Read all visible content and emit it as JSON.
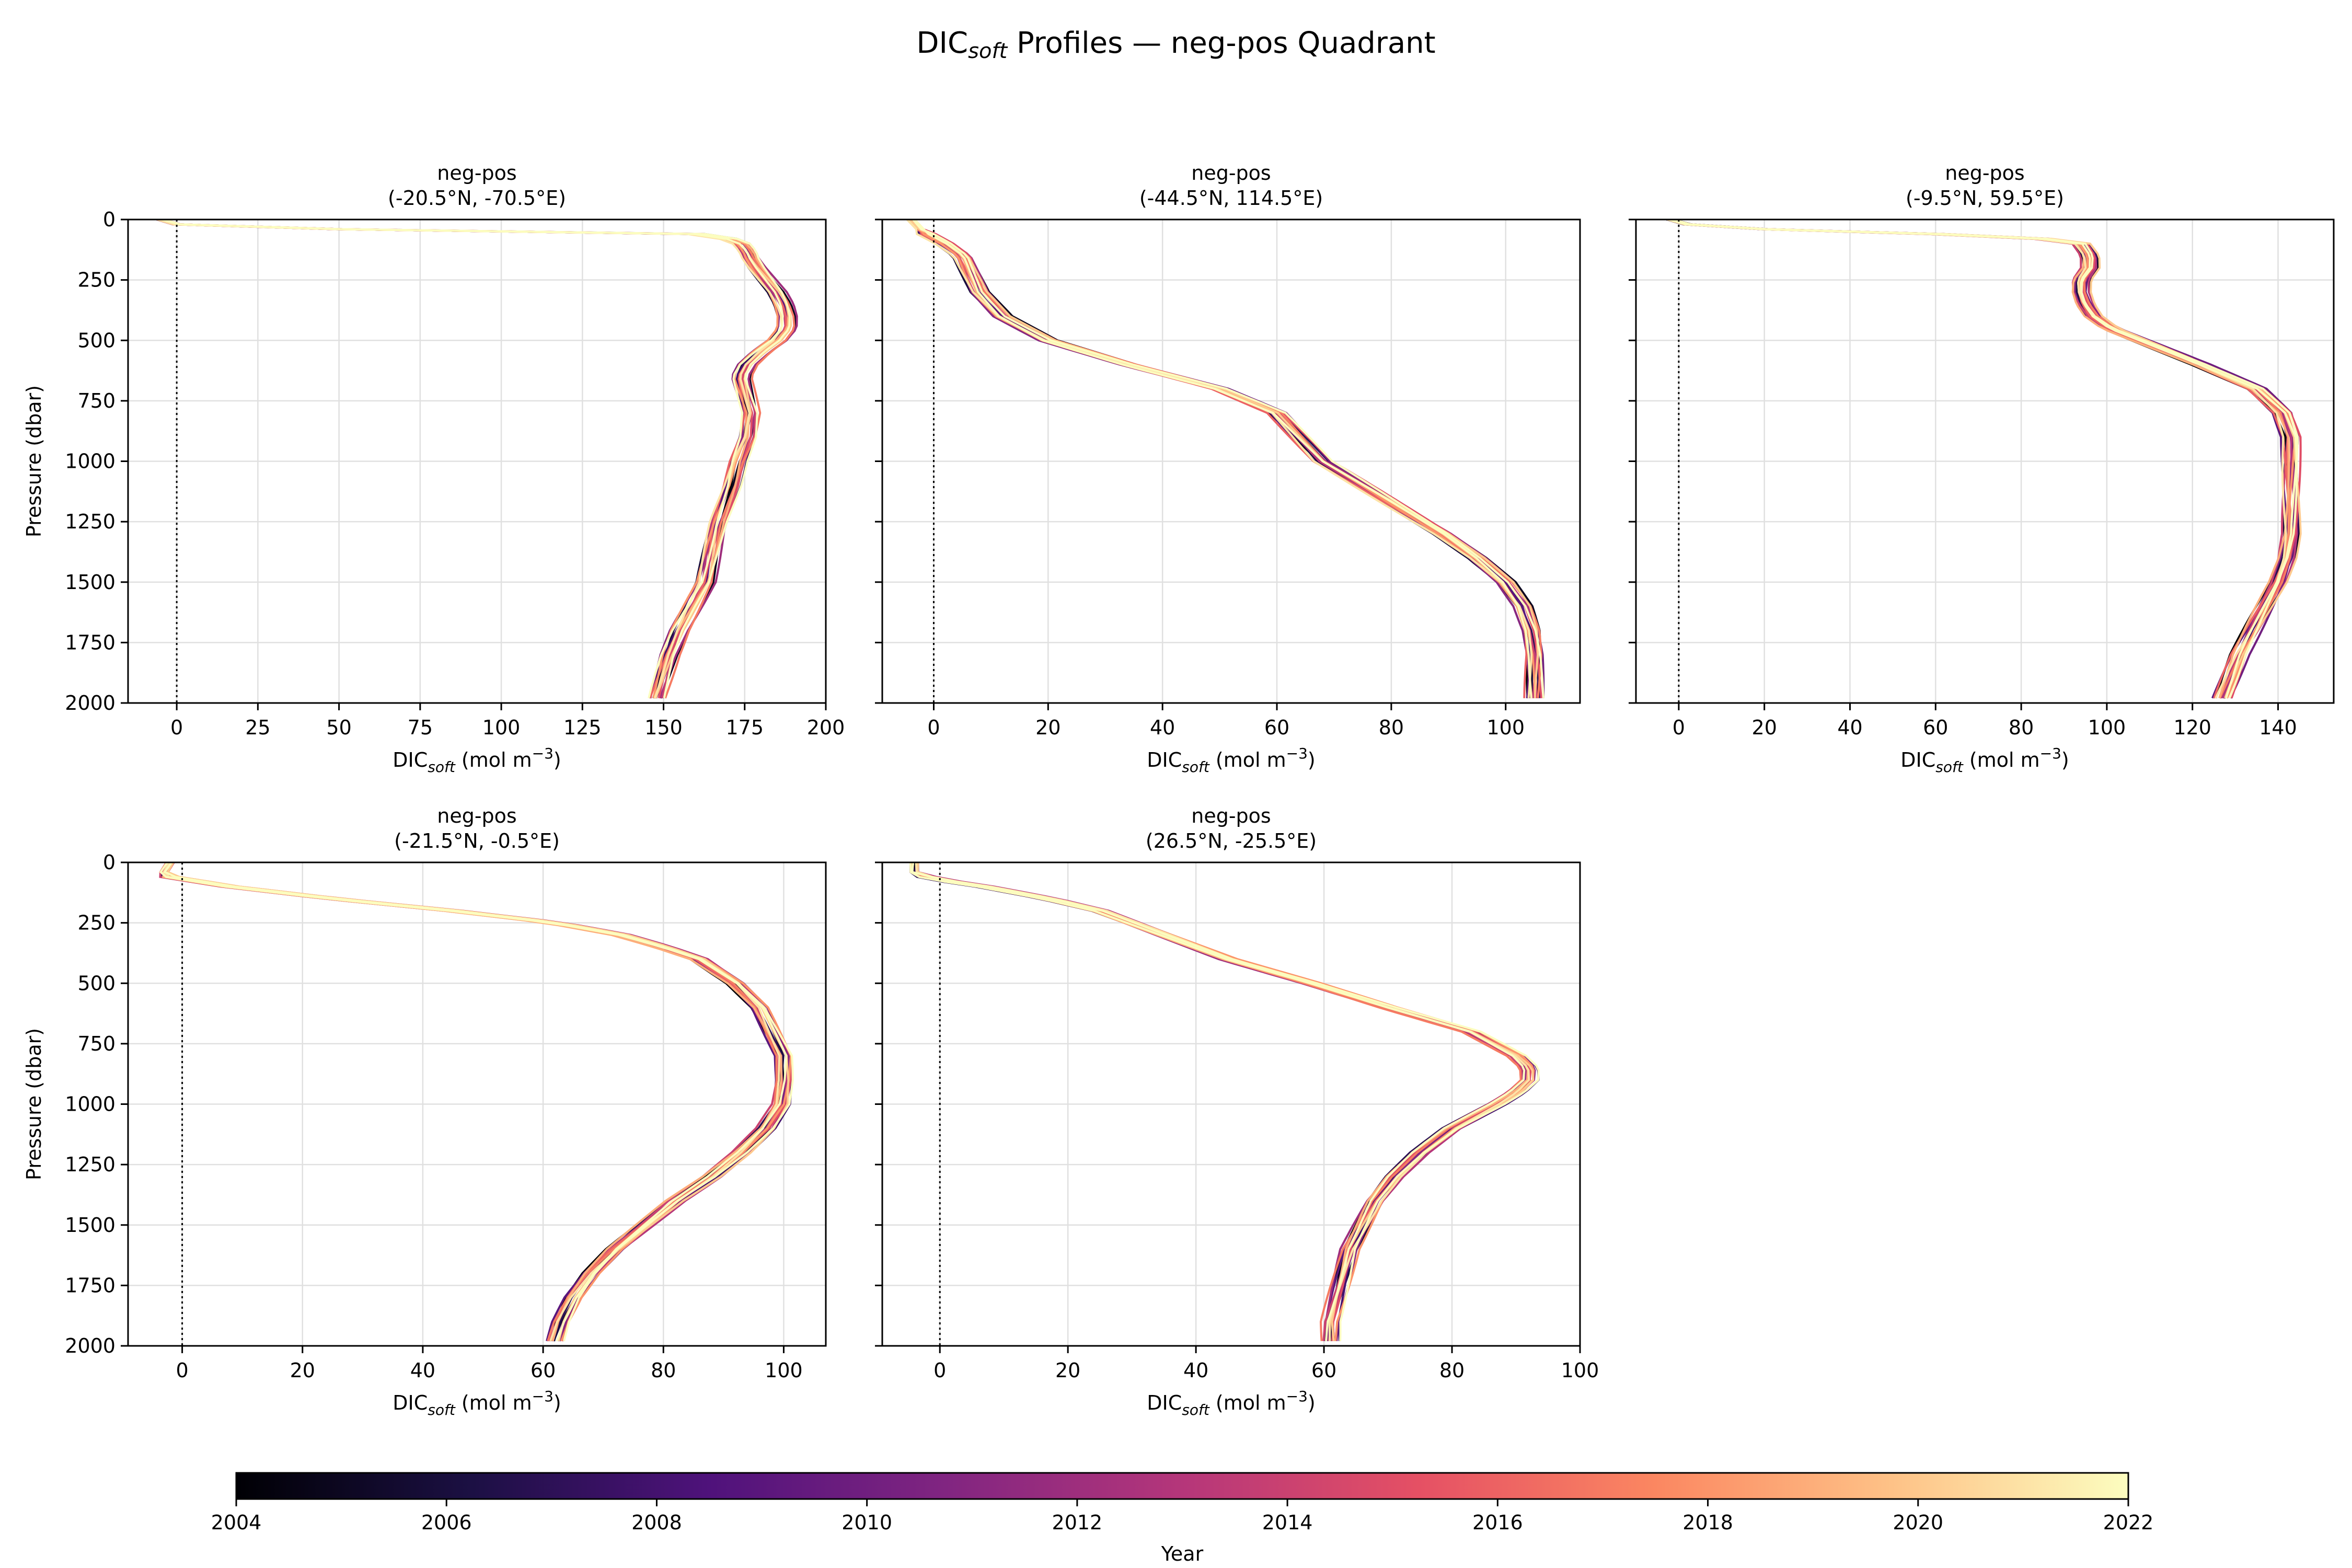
{
  "figure": {
    "title_prefix": "DIC",
    "title_sub": "soft",
    "title_suffix": " Profiles — neg-pos Quadrant"
  },
  "colorbar": {
    "label": "Year",
    "vmin": 2004,
    "vmax": 2022,
    "ticks": [
      "2004",
      "2006",
      "2008",
      "2010",
      "2012",
      "2014",
      "2016",
      "2018",
      "2020",
      "2022"
    ],
    "colormap": "magma",
    "stops": [
      "#000004",
      "#1c1044",
      "#4f127b",
      "#812581",
      "#b5367a",
      "#e55064",
      "#fb8761",
      "#fec287",
      "#fcfdbf"
    ]
  },
  "chart_data": [
    {
      "type": "line",
      "title": "neg-pos",
      "subtitle": "(-20.5°N, -70.5°E)",
      "xlabel_main": "DIC",
      "xlabel_sub": "soft",
      "xlabel_unit": " (mol m",
      "xlabel_exp": "−3",
      "xlabel_close": ")",
      "ylabel": "Pressure (dbar)",
      "xlim": [
        -15,
        200
      ],
      "ylim": [
        2000,
        0
      ],
      "xticks": [
        0,
        25,
        50,
        75,
        100,
        125,
        150,
        175,
        200
      ],
      "yticks": [
        0,
        250,
        500,
        750,
        1000,
        1250,
        1500,
        1750,
        2000
      ],
      "zero_line": 0,
      "grid": true,
      "pressure": [
        0,
        20,
        40,
        60,
        80,
        100,
        130,
        160,
        200,
        250,
        300,
        350,
        400,
        450,
        500,
        550,
        600,
        650,
        700,
        750,
        800,
        900,
        1000,
        1100,
        1250,
        1500,
        1700,
        1800,
        1980
      ],
      "base_dic": [
        -5,
        0,
        50,
        160,
        170,
        174,
        176,
        177,
        179,
        182,
        185,
        187,
        188,
        188,
        185,
        180,
        176,
        174,
        175,
        176,
        177,
        176,
        173,
        171,
        167,
        163,
        155,
        152,
        148
      ],
      "years": [
        2004,
        2006,
        2008,
        2010,
        2012,
        2014,
        2016,
        2018,
        2020,
        2022
      ]
    },
    {
      "type": "line",
      "title": "neg-pos",
      "subtitle": "(-44.5°N, 114.5°E)",
      "xlabel_main": "DIC",
      "xlabel_sub": "soft",
      "xlabel_unit": " (mol m",
      "xlabel_exp": "−3",
      "xlabel_close": ")",
      "ylabel": "",
      "xlim": [
        -9,
        113
      ],
      "ylim": [
        2000,
        0
      ],
      "xticks": [
        0,
        20,
        40,
        60,
        80,
        100
      ],
      "yticks": [
        0,
        250,
        500,
        750,
        1000,
        1250,
        1500,
        1750,
        2000
      ],
      "zero_line": 0,
      "grid": true,
      "pressure": [
        0,
        50,
        100,
        150,
        200,
        250,
        300,
        400,
        500,
        600,
        700,
        800,
        900,
        1000,
        1100,
        1200,
        1300,
        1400,
        1500,
        1600,
        1700,
        1800,
        1900,
        1980
      ],
      "base_dic": [
        -4,
        -2,
        2,
        5,
        6,
        7,
        8,
        12,
        20,
        34,
        50,
        60,
        64,
        68,
        75,
        82,
        89,
        95,
        100,
        103,
        104.5,
        105,
        105,
        105
      ],
      "years": [
        2004,
        2006,
        2008,
        2010,
        2012,
        2014,
        2016,
        2018,
        2020,
        2022
      ]
    },
    {
      "type": "line",
      "title": "neg-pos",
      "subtitle": "(-9.5°N, 59.5°E)",
      "xlabel_main": "DIC",
      "xlabel_sub": "soft",
      "xlabel_unit": " (mol m",
      "xlabel_exp": "−3",
      "xlabel_close": ")",
      "ylabel": "",
      "xlim": [
        -10,
        153
      ],
      "ylim": [
        2000,
        0
      ],
      "xticks": [
        0,
        20,
        40,
        60,
        80,
        100,
        120,
        140
      ],
      "yticks": [
        0,
        250,
        500,
        750,
        1000,
        1250,
        1500,
        1750,
        2000
      ],
      "zero_line": 0,
      "grid": true,
      "pressure": [
        0,
        20,
        40,
        60,
        80,
        100,
        150,
        200,
        250,
        300,
        350,
        400,
        450,
        500,
        600,
        700,
        800,
        900,
        1000,
        1100,
        1200,
        1300,
        1400,
        1500,
        1600,
        1700,
        1800,
        1980
      ],
      "base_dic": [
        -2,
        2,
        20,
        60,
        85,
        94,
        96,
        96,
        94,
        94,
        95,
        97,
        101,
        108,
        122,
        135,
        141,
        143,
        143,
        143,
        143,
        143,
        142,
        140,
        137,
        134,
        131,
        127
      ],
      "years": [
        2004,
        2006,
        2008,
        2010,
        2012,
        2014,
        2016,
        2018,
        2020,
        2022
      ]
    },
    {
      "type": "line",
      "title": "neg-pos",
      "subtitle": "(-21.5°N, -0.5°E)",
      "xlabel_main": "DIC",
      "xlabel_sub": "soft",
      "xlabel_unit": " (mol m",
      "xlabel_exp": "−3",
      "xlabel_close": ")",
      "ylabel": "Pressure (dbar)",
      "xlim": [
        -9,
        107
      ],
      "ylim": [
        2000,
        0
      ],
      "xticks": [
        0,
        20,
        40,
        60,
        80,
        100
      ],
      "yticks": [
        0,
        250,
        500,
        750,
        1000,
        1250,
        1500,
        1750,
        2000
      ],
      "zero_line": 0,
      "grid": true,
      "pressure": [
        0,
        40,
        60,
        80,
        100,
        150,
        200,
        250,
        300,
        350,
        400,
        500,
        600,
        700,
        800,
        900,
        1000,
        1100,
        1200,
        1300,
        1400,
        1500,
        1600,
        1700,
        1800,
        1900,
        1980
      ],
      "base_dic": [
        -2,
        -3,
        -2,
        3,
        8,
        25,
        45,
        62,
        73,
        80,
        86,
        92,
        96,
        98,
        100,
        100,
        99.5,
        97,
        93,
        88,
        82,
        77,
        72,
        68,
        65,
        63,
        62
      ],
      "years": [
        2004,
        2006,
        2008,
        2010,
        2012,
        2014,
        2016,
        2018,
        2020,
        2022
      ]
    },
    {
      "type": "line",
      "title": "neg-pos",
      "subtitle": "(26.5°N, -25.5°E)",
      "xlabel_main": "DIC",
      "xlabel_sub": "soft",
      "xlabel_unit": " (mol m",
      "xlabel_exp": "−3",
      "xlabel_close": ")",
      "ylabel": "",
      "xlim": [
        -9,
        100
      ],
      "ylim": [
        2000,
        0
      ],
      "xticks": [
        0,
        20,
        40,
        60,
        80,
        100
      ],
      "yticks": [
        0,
        250,
        500,
        750,
        1000,
        1250,
        1500,
        1750,
        2000
      ],
      "zero_line": 0,
      "grid": true,
      "pressure": [
        0,
        40,
        60,
        80,
        100,
        150,
        200,
        250,
        300,
        350,
        400,
        500,
        600,
        700,
        800,
        850,
        900,
        950,
        1000,
        1100,
        1200,
        1300,
        1400,
        1500,
        1600,
        1700,
        1800,
        1900,
        1980
      ],
      "base_dic": [
        -4,
        -4,
        -2,
        2,
        7,
        17,
        25,
        30,
        35,
        40,
        45,
        58,
        70,
        83,
        90,
        92,
        92,
        90,
        87,
        80,
        75,
        71,
        68,
        66,
        64,
        63,
        62,
        61,
        61
      ],
      "years": [
        2004,
        2006,
        2008,
        2010,
        2012,
        2014,
        2016,
        2018,
        2020,
        2022
      ]
    }
  ]
}
